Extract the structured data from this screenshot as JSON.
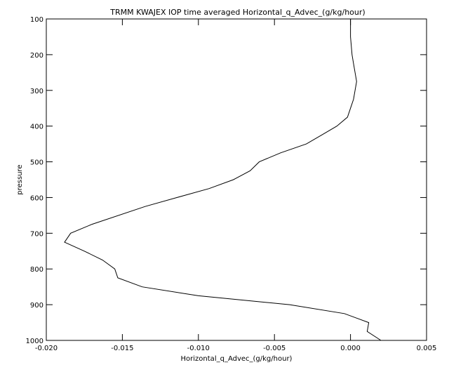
{
  "chart_data": {
    "type": "line",
    "title": "TRMM KWAJEX IOP time averaged Horizontal_q_Advec_(g/kg/hour)",
    "xlabel": "Horizontal_q_Advec_(g/kg/hour)",
    "ylabel": "pressure",
    "xlim": [
      -0.02,
      0.005
    ],
    "ylim": [
      1000,
      100
    ],
    "y_reversed": true,
    "grid": false,
    "x_ticks": [
      "-0.020",
      "-0.015",
      "-0.010",
      "-0.005",
      "0.000",
      "0.005"
    ],
    "x_tick_values": [
      -0.02,
      -0.015,
      -0.01,
      -0.005,
      0.0,
      0.005
    ],
    "y_ticks": [
      "100",
      "200",
      "300",
      "400",
      "500",
      "600",
      "700",
      "800",
      "900",
      "1000"
    ],
    "y_tick_values": [
      100,
      200,
      300,
      400,
      500,
      600,
      700,
      800,
      900,
      1000
    ],
    "series": [
      {
        "color": "#000000",
        "x": [
          0.0,
          0.0,
          0.0001,
          0.0002,
          0.0003,
          0.0004,
          0.0003,
          0.0002,
          0.0,
          -0.0002,
          -0.0009,
          -0.0019,
          -0.0029,
          -0.0046,
          -0.006,
          -0.0066,
          -0.0077,
          -0.0093,
          -0.0114,
          -0.0135,
          -0.017,
          -0.0184,
          -0.0188,
          -0.0175,
          -0.0163,
          -0.0155,
          -0.0153,
          -0.0137,
          -0.01,
          -0.004,
          -0.0004,
          0.0012,
          0.0011,
          0.002
        ],
        "y": [
          100,
          150,
          200,
          225,
          250,
          275,
          300,
          325,
          350,
          375,
          400,
          425,
          450,
          475,
          500,
          525,
          550,
          575,
          600,
          625,
          675,
          700,
          725,
          750,
          775,
          800,
          825,
          850,
          875,
          900,
          925,
          950,
          975,
          1000
        ]
      }
    ]
  }
}
